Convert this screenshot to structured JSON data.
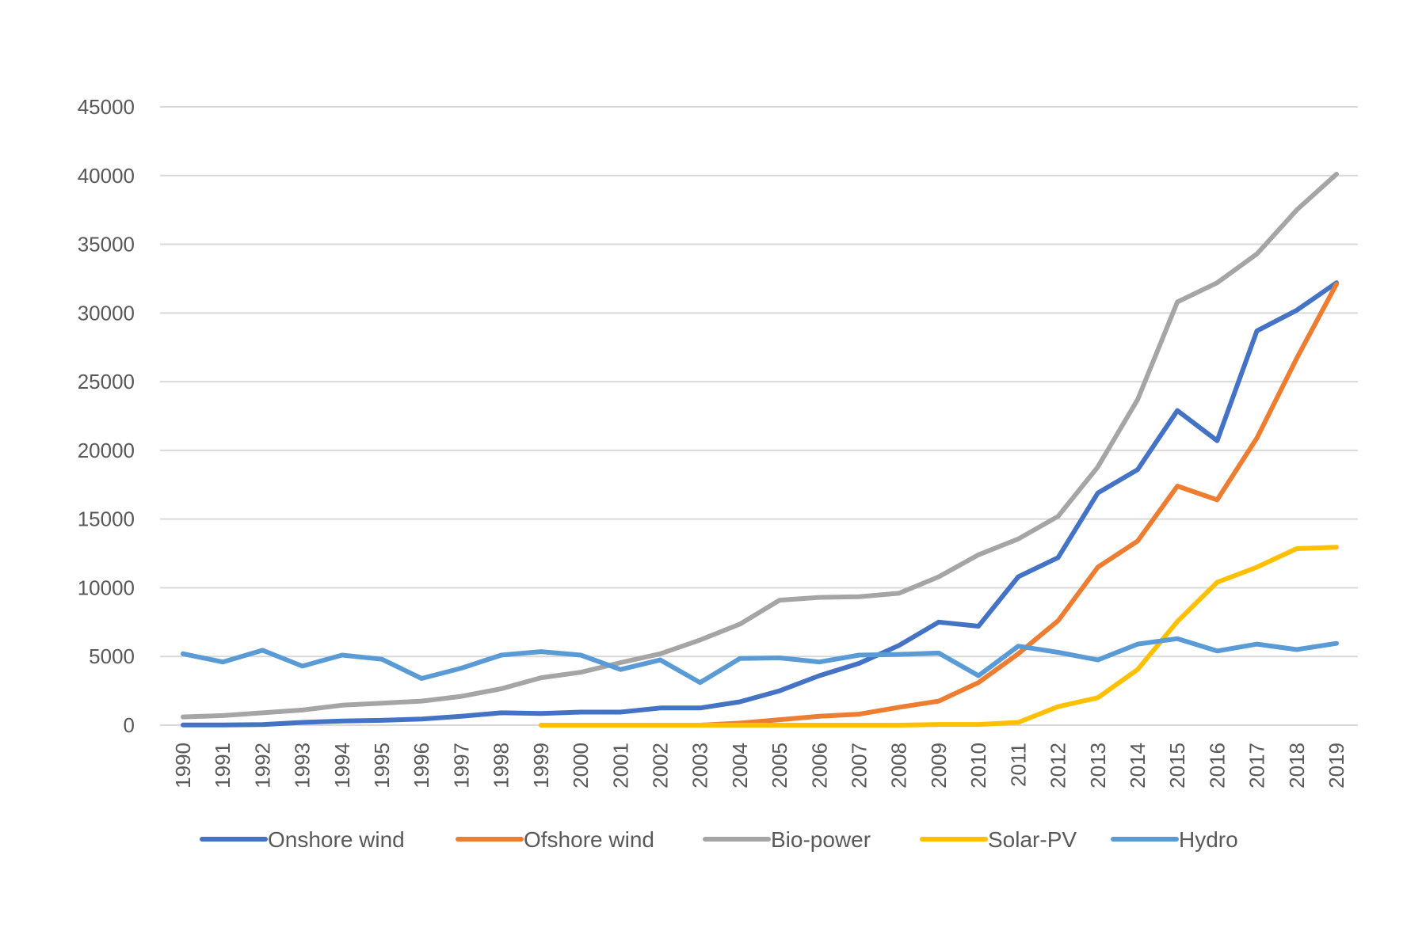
{
  "chart_data": {
    "type": "line",
    "title": "",
    "xlabel": "",
    "ylabel": "",
    "ylim": [
      0,
      45000
    ],
    "yticks": [
      0,
      5000,
      10000,
      15000,
      20000,
      25000,
      30000,
      35000,
      40000,
      45000
    ],
    "grid": true,
    "legend_position": "bottom",
    "categories": [
      "1990",
      "1991",
      "1992",
      "1993",
      "1994",
      "1995",
      "1996",
      "1997",
      "1998",
      "1999",
      "2000",
      "2001",
      "2002",
      "2003",
      "2004",
      "2005",
      "2006",
      "2007",
      "2008",
      "2009",
      "2010",
      "2011",
      "2012",
      "2013",
      "2014",
      "2015",
      "2016",
      "2017",
      "2018",
      "2019"
    ],
    "series": [
      {
        "name": "Onshore wind",
        "color": "#4472c4",
        "values": [
          10,
          10,
          40,
          200,
          300,
          350,
          450,
          650,
          900,
          850,
          950,
          950,
          1250,
          1250,
          1700,
          2500,
          3600,
          4500,
          5800,
          7500,
          7200,
          10800,
          12200,
          16900,
          18600,
          22900,
          20700,
          28700,
          30200,
          32200
        ]
      },
      {
        "name": "Ofshore wind",
        "color": "#ed7d31",
        "values": [
          null,
          null,
          null,
          null,
          null,
          null,
          null,
          null,
          null,
          null,
          null,
          null,
          null,
          0,
          150,
          400,
          650,
          800,
          1300,
          1750,
          3100,
          5200,
          7600,
          11500,
          13400,
          17400,
          16400,
          20900,
          26700,
          32100
        ]
      },
      {
        "name": "Bio-power",
        "color": "#a5a5a5",
        "values": [
          600,
          700,
          900,
          1100,
          1450,
          1600,
          1750,
          2100,
          2650,
          3450,
          3850,
          4550,
          5200,
          6200,
          7350,
          9100,
          9300,
          9350,
          9600,
          10800,
          12400,
          13550,
          15200,
          18800,
          23700,
          30800,
          32200,
          34300,
          37500,
          40100
        ]
      },
      {
        "name": "Solar-PV",
        "color": "#ffc000",
        "values": [
          null,
          null,
          null,
          null,
          null,
          null,
          null,
          null,
          null,
          0,
          0,
          0,
          0,
          0,
          0,
          0,
          0,
          0,
          0,
          50,
          50,
          200,
          1350,
          2000,
          4050,
          7550,
          10400,
          11500,
          12850,
          12950
        ]
      },
      {
        "name": "Hydro",
        "color": "#5b9bd5",
        "values": [
          5200,
          4600,
          5450,
          4300,
          5100,
          4800,
          3400,
          4150,
          5100,
          5350,
          5100,
          4050,
          4750,
          3100,
          4850,
          4900,
          4600,
          5100,
          5150,
          5250,
          3600,
          5750,
          5300,
          4750,
          5900,
          6300,
          5400,
          5900,
          5500,
          5950
        ]
      }
    ]
  }
}
